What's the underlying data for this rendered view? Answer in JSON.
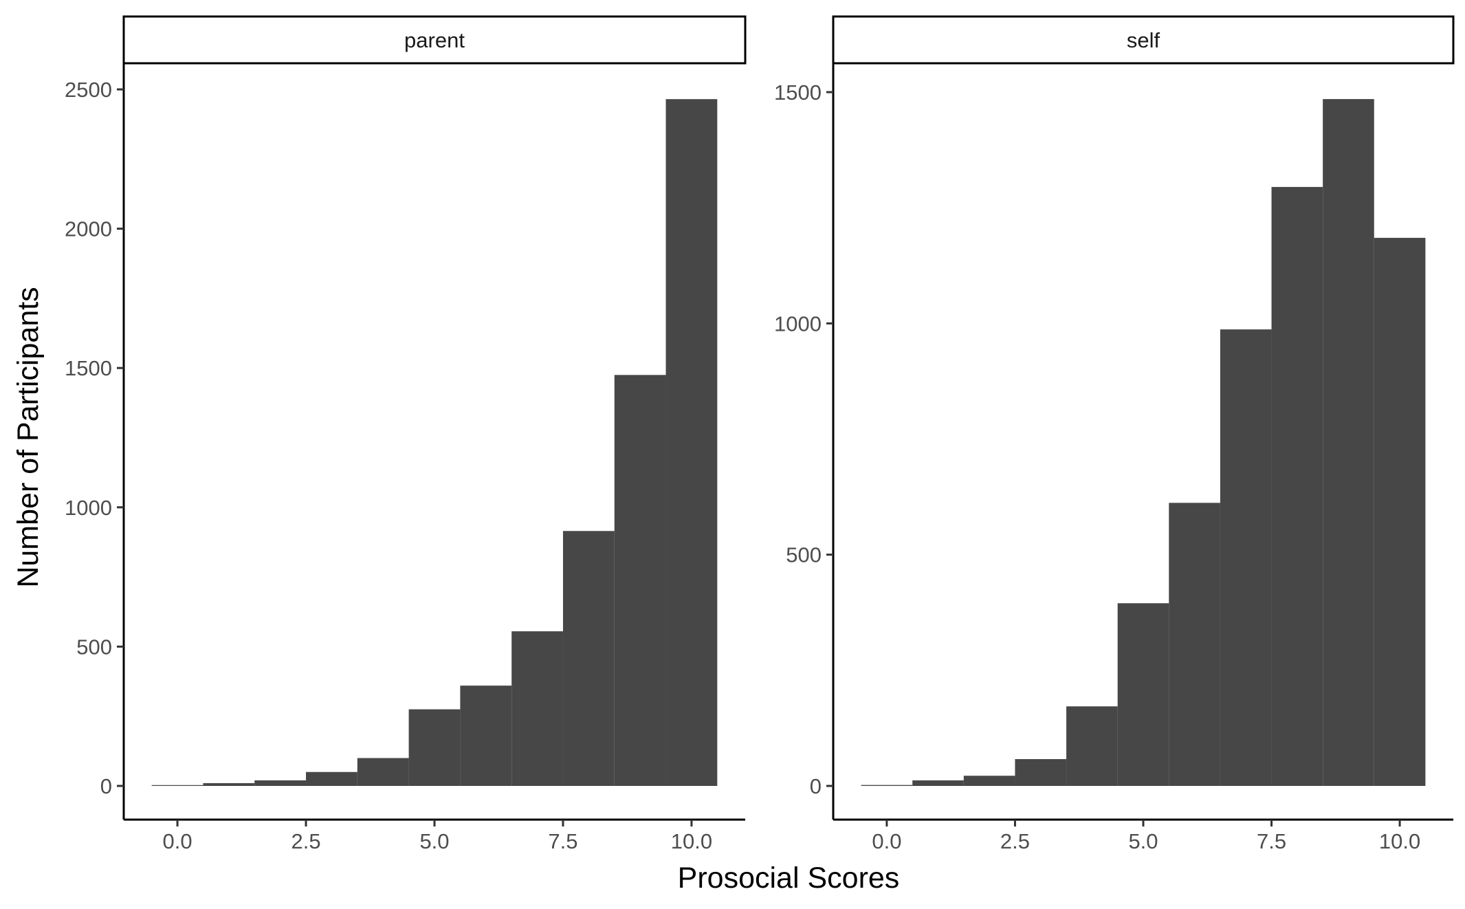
{
  "chart_data": {
    "type": "bar",
    "title": "",
    "xlabel": "Prosocial Scores",
    "ylabel": "Number of Participants",
    "bar_color": "#474747",
    "grid": false,
    "legend": "none",
    "facets": [
      {
        "label": "parent",
        "xlim": [
          -0.5,
          10.5
        ],
        "ylim": [
          0,
          2500
        ],
        "x_ticks": [
          "0.0",
          "2.5",
          "5.0",
          "7.5",
          "10.0"
        ],
        "y_ticks": [
          "0",
          "500",
          "1000",
          "1500",
          "2000",
          "2500"
        ],
        "bins": [
          0,
          1,
          2,
          3,
          4,
          5,
          6,
          7,
          8,
          9,
          10
        ],
        "values": [
          3,
          10,
          20,
          50,
          100,
          275,
          360,
          555,
          915,
          1475,
          2465
        ]
      },
      {
        "label": "self",
        "xlim": [
          -0.5,
          10.5
        ],
        "ylim": [
          0,
          1500
        ],
        "x_ticks": [
          "0.0",
          "2.5",
          "5.0",
          "7.5",
          "10.0"
        ],
        "y_ticks": [
          "0",
          "500",
          "1000",
          "1500"
        ],
        "bins": [
          0,
          1,
          2,
          3,
          4,
          5,
          6,
          7,
          8,
          9,
          10
        ],
        "values": [
          2,
          12,
          22,
          58,
          172,
          395,
          612,
          987,
          1295,
          1485,
          1185
        ]
      }
    ]
  }
}
